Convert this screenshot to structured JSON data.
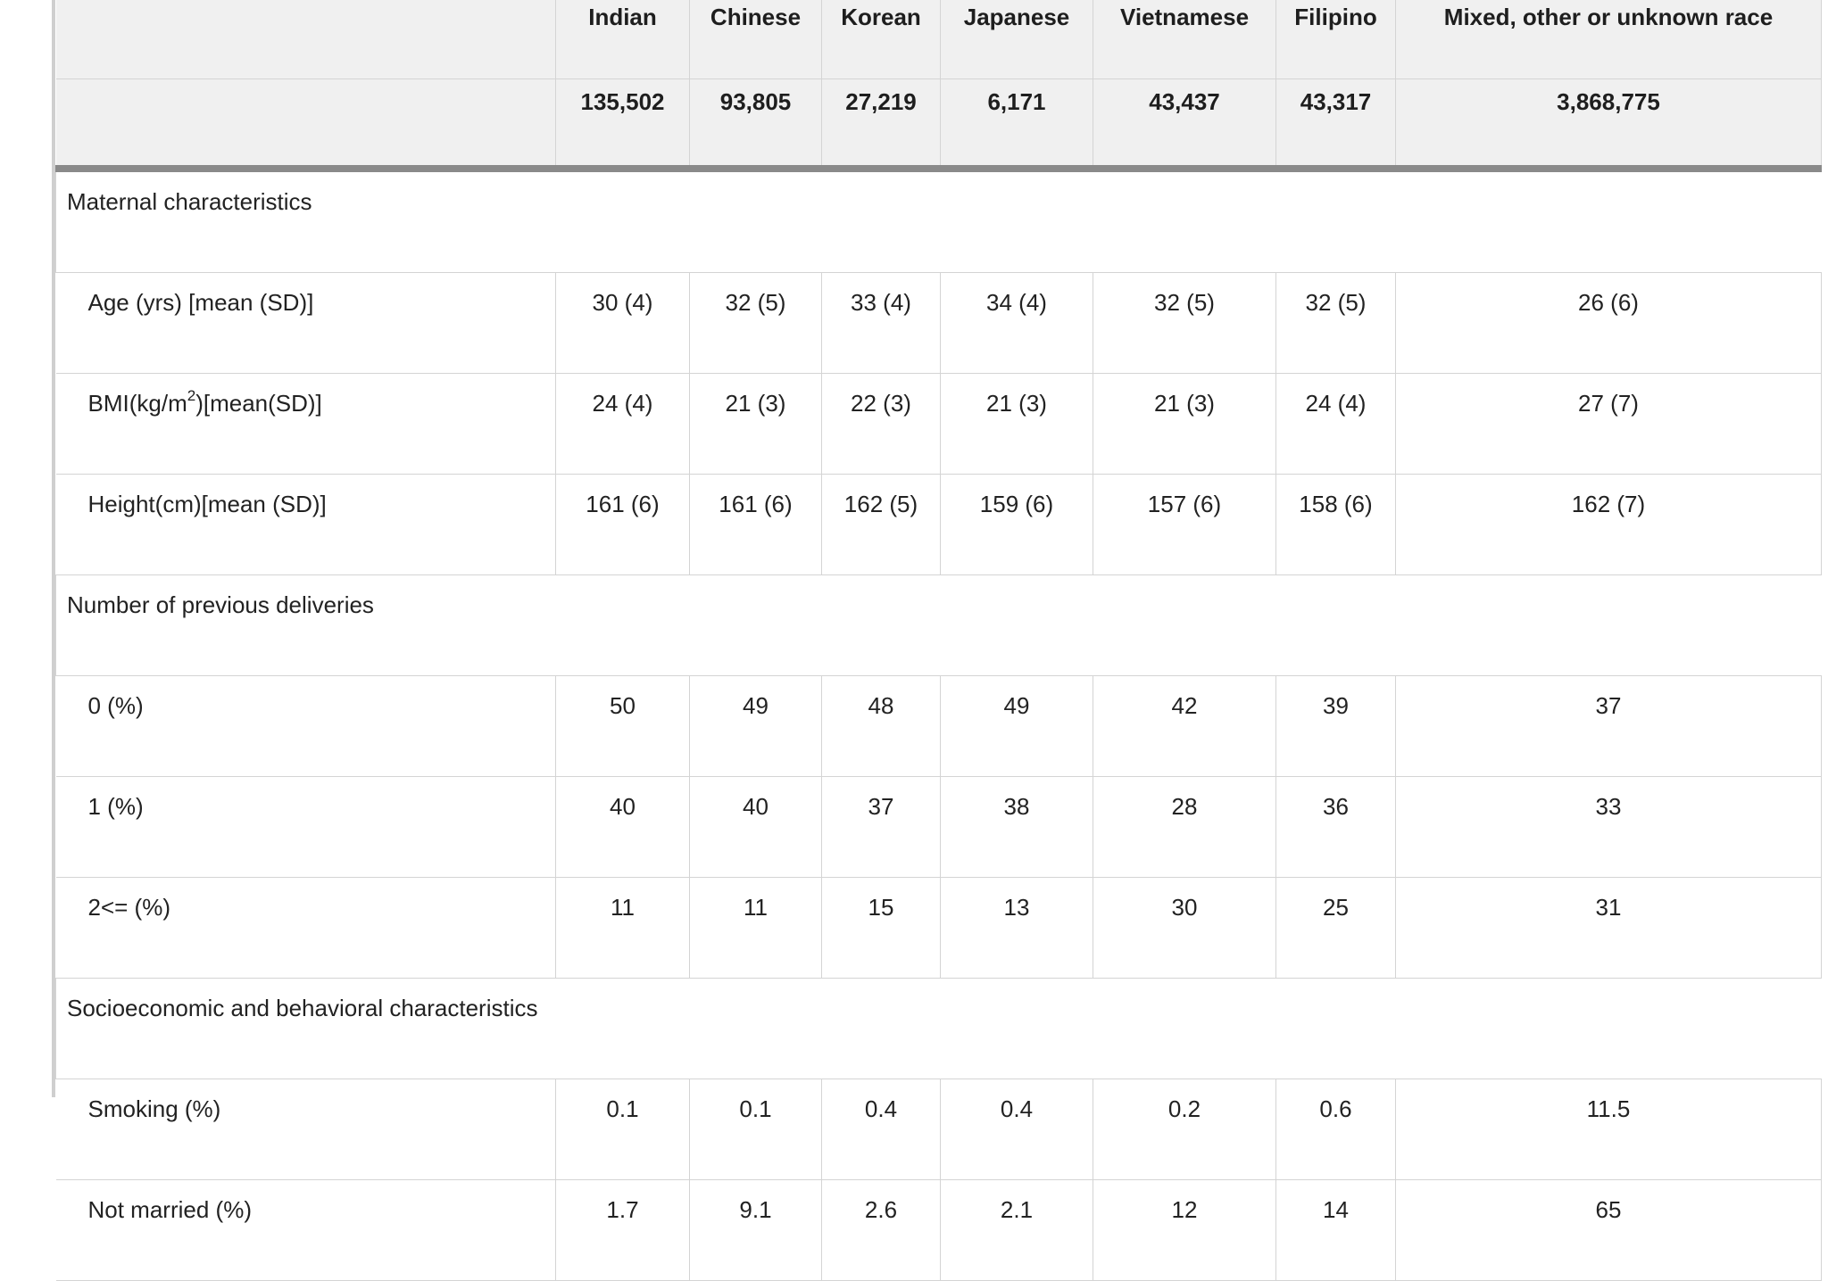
{
  "table": {
    "columns": [
      {
        "name": "Indian",
        "count": "135,502"
      },
      {
        "name": "Chinese",
        "count": "93,805"
      },
      {
        "name": "Korean",
        "count": "27,219"
      },
      {
        "name": "Japanese",
        "count": "6,171"
      },
      {
        "name": "Vietnamese",
        "count": "43,437"
      },
      {
        "name": "Filipino",
        "count": "43,317"
      },
      {
        "name": "Mixed, other or unknown race",
        "count": "3,868,775"
      }
    ],
    "sections": [
      {
        "title": "Maternal characteristics",
        "rows": [
          {
            "label": "Age (yrs) [mean (SD)]",
            "values": [
              "30 (4)",
              "32 (5)",
              "33 (4)",
              "34 (4)",
              "32 (5)",
              "32 (5)",
              "26 (6)"
            ]
          },
          {
            "label_prefix": "BMI(kg/m",
            "label_sup": "2",
            "label_suffix": ")[mean(SD)]",
            "values": [
              "24 (4)",
              "21 (3)",
              "22 (3)",
              "21 (3)",
              "21 (3)",
              "24 (4)",
              "27 (7)"
            ]
          },
          {
            "label": "Height(cm)[mean (SD)]",
            "values": [
              "161 (6)",
              "161 (6)",
              "162 (5)",
              "159 (6)",
              "157 (6)",
              "158 (6)",
              "162 (7)"
            ]
          }
        ]
      },
      {
        "title": "Number of previous deliveries",
        "rows": [
          {
            "label": "0 (%)",
            "values": [
              "50",
              "49",
              "48",
              "49",
              "42",
              "39",
              "37"
            ]
          },
          {
            "label": "1 (%)",
            "values": [
              "40",
              "40",
              "37",
              "38",
              "28",
              "36",
              "33"
            ]
          },
          {
            "label": "2<= (%)",
            "values": [
              "11",
              "11",
              "15",
              "13",
              "30",
              "25",
              "31"
            ]
          }
        ]
      },
      {
        "title": "Socioeconomic and behavioral characteristics",
        "rows": [
          {
            "label": "Smoking (%)",
            "values": [
              "0.1",
              "0.1",
              "0.4",
              "0.4",
              "0.2",
              "0.6",
              "11.5"
            ]
          },
          {
            "label": "Not married (%)",
            "values": [
              "1.7",
              "9.1",
              "2.6",
              "2.1",
              "12",
              "14",
              "65"
            ]
          }
        ]
      }
    ]
  }
}
